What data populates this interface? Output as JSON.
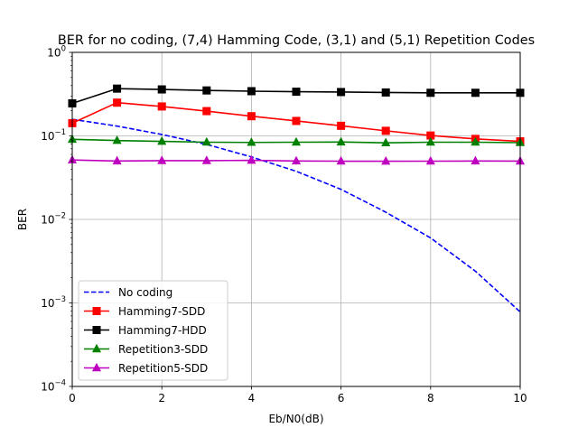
{
  "chart_data": {
    "type": "line",
    "title": "BER for no coding, (7,4) Hamming Code, (3,1) and (5,1) Repetition Codes",
    "xlabel": "Eb/N0(dB)",
    "ylabel": "BER",
    "xlim": [
      0,
      10
    ],
    "ylim": [
      0.0001,
      1
    ],
    "yscale": "log",
    "grid": true,
    "legend_position": "lower-left",
    "x_ticks": [
      {
        "value": 0,
        "label": "0"
      },
      {
        "value": 2,
        "label": "2"
      },
      {
        "value": 4,
        "label": "4"
      },
      {
        "value": 6,
        "label": "6"
      },
      {
        "value": 8,
        "label": "8"
      },
      {
        "value": 10,
        "label": "10"
      }
    ],
    "y_ticks": [
      {
        "value": 0.0001,
        "base": "10",
        "exp": "−4"
      },
      {
        "value": 0.001,
        "base": "10",
        "exp": "−3"
      },
      {
        "value": 0.01,
        "base": "10",
        "exp": "−2"
      },
      {
        "value": 0.1,
        "base": "10",
        "exp": "−1"
      },
      {
        "value": 1,
        "base": "10",
        "exp": "0"
      }
    ],
    "series": [
      {
        "name": "No coding",
        "color": "#0000ff",
        "style": "dashed",
        "marker": "none",
        "x": [
          0,
          1,
          2,
          3,
          4,
          5,
          6,
          7,
          8,
          9,
          10
        ],
        "y": [
          0.158,
          0.131,
          0.104,
          0.079,
          0.056,
          0.0377,
          0.0229,
          0.0122,
          0.006,
          0.0024,
          0.00078
        ]
      },
      {
        "name": "Hamming7-SDD",
        "color": "#ff0000",
        "style": "solid",
        "marker": "square",
        "x": [
          0,
          1,
          2,
          3,
          4,
          5,
          6,
          7,
          8,
          9,
          10
        ],
        "y": [
          0.142,
          0.25,
          0.225,
          0.198,
          0.172,
          0.151,
          0.132,
          0.115,
          0.101,
          0.092,
          0.086
        ]
      },
      {
        "name": "Hamming7-HDD",
        "color": "#000000",
        "style": "solid",
        "marker": "square",
        "x": [
          0,
          1,
          2,
          3,
          4,
          5,
          6,
          7,
          8,
          9,
          10
        ],
        "y": [
          0.245,
          0.368,
          0.36,
          0.35,
          0.343,
          0.338,
          0.335,
          0.331,
          0.328,
          0.328,
          0.328
        ]
      },
      {
        "name": "Repetition3-SDD",
        "color": "#008000",
        "style": "solid",
        "marker": "triangle",
        "x": [
          0,
          1,
          2,
          3,
          4,
          5,
          6,
          7,
          8,
          9,
          10
        ],
        "y": [
          0.091,
          0.088,
          0.086,
          0.084,
          0.0835,
          0.084,
          0.0845,
          0.0825,
          0.084,
          0.084,
          0.083
        ]
      },
      {
        "name": "Repetition5-SDD",
        "color": "#bf00bf",
        "style": "solid",
        "marker": "triangle",
        "x": [
          0,
          1,
          2,
          3,
          4,
          5,
          6,
          7,
          8,
          9,
          10
        ],
        "y": [
          0.0515,
          0.05,
          0.0505,
          0.0505,
          0.051,
          0.05,
          0.0498,
          0.0497,
          0.0498,
          0.05,
          0.0499
        ]
      }
    ]
  }
}
